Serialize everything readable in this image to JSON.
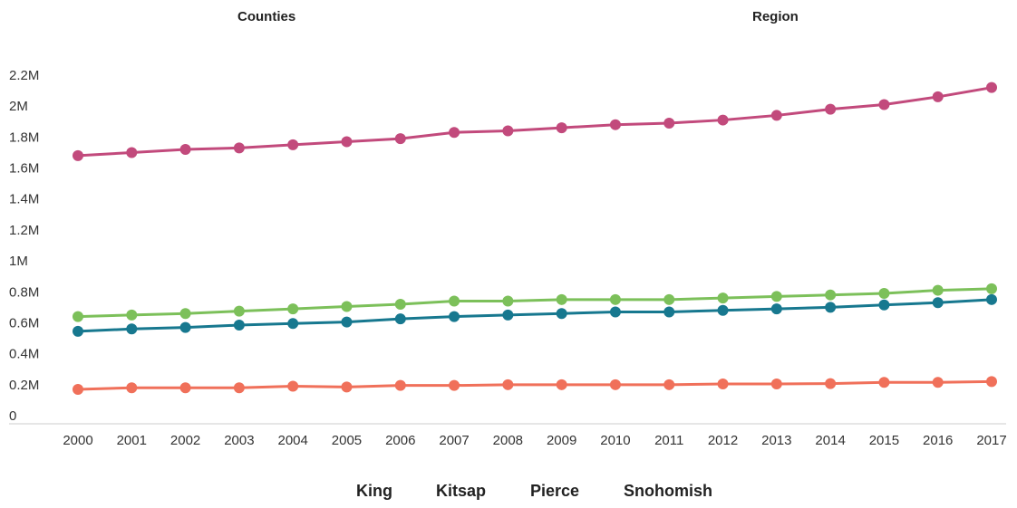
{
  "tabs": {
    "counties": "Counties",
    "region": "Region"
  },
  "colors": {
    "King": "#c24a7c",
    "Kitsap": "#f0705a",
    "Pierce": "#17788f",
    "Snohomish": "#7cc05a",
    "axis": "#cccccc"
  },
  "chart_data": {
    "type": "line",
    "x": [
      "2000",
      "2001",
      "2002",
      "2003",
      "2004",
      "2005",
      "2006",
      "2007",
      "2008",
      "2009",
      "2010",
      "2011",
      "2012",
      "2013",
      "2014",
      "2015",
      "2016",
      "2017"
    ],
    "yticks": [
      "0",
      "0.2M",
      "0.4M",
      "0.6M",
      "0.8M",
      "1M",
      "1.2M",
      "1.4M",
      "1.6M",
      "1.8M",
      "2M",
      "2.2M"
    ],
    "ylim": [
      0,
      2200000
    ],
    "legend_position": "bottom",
    "grid": false,
    "series": [
      {
        "name": "King",
        "values": [
          1680000,
          1700000,
          1720000,
          1730000,
          1750000,
          1770000,
          1790000,
          1830000,
          1840000,
          1860000,
          1880000,
          1890000,
          1910000,
          1940000,
          1980000,
          2010000,
          2060000,
          2120000
        ]
      },
      {
        "name": "Snohomish",
        "values": [
          640000,
          650000,
          660000,
          675000,
          690000,
          705000,
          720000,
          740000,
          740000,
          750000,
          750000,
          750000,
          760000,
          770000,
          780000,
          790000,
          810000,
          820000
        ]
      },
      {
        "name": "Pierce",
        "values": [
          545000,
          560000,
          570000,
          585000,
          595000,
          605000,
          625000,
          640000,
          650000,
          660000,
          670000,
          670000,
          680000,
          690000,
          700000,
          715000,
          730000,
          750000
        ]
      },
      {
        "name": "Kitsap",
        "values": [
          170000,
          180000,
          180000,
          180000,
          190000,
          185000,
          195000,
          195000,
          200000,
          200000,
          200000,
          200000,
          205000,
          205000,
          207000,
          215000,
          215000,
          220000
        ]
      }
    ]
  },
  "legend": [
    "King",
    "Kitsap",
    "Pierce",
    "Snohomish"
  ]
}
